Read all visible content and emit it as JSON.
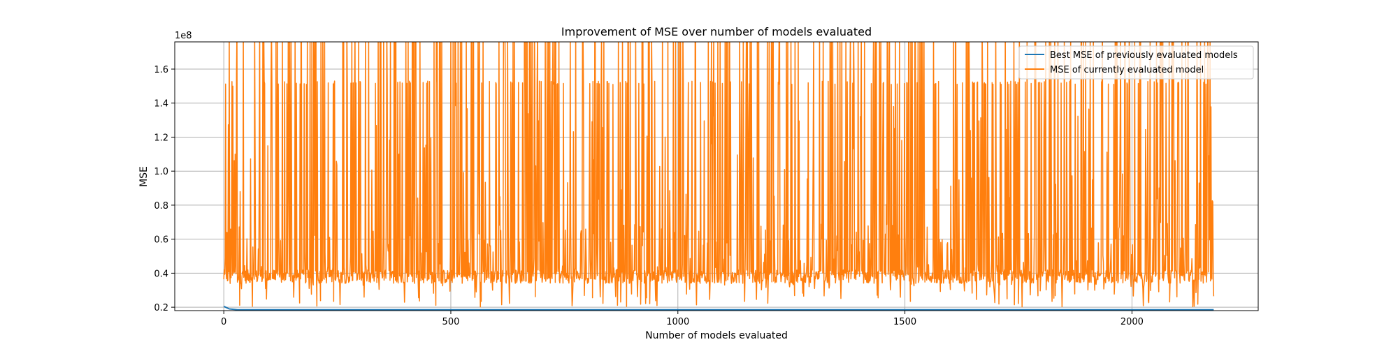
{
  "chart_data": {
    "type": "line",
    "title": "Improvement of MSE over number of models evaluated",
    "xlabel": "Number of models evaluated",
    "ylabel": "MSE",
    "y_offset_label": "1e8",
    "y_scale": 100000000,
    "xlim": [
      -108,
      2278
    ],
    "ylim": [
      0.18,
      1.76
    ],
    "x_ticks": [
      0,
      500,
      1000,
      1500,
      2000
    ],
    "y_ticks": [
      0.2,
      0.4,
      0.6,
      0.8,
      1.0,
      1.2,
      1.4,
      1.6
    ],
    "x_tick_labels": [
      "0",
      "500",
      "1000",
      "1500",
      "2000"
    ],
    "y_tick_labels": [
      "0.2",
      "0.4",
      "0.6",
      "0.8",
      "1.0",
      "1.2",
      "1.4",
      "1.6"
    ],
    "grid": true,
    "legend_position": "top-right",
    "series": [
      {
        "name": "Best MSE of previously evaluated models",
        "color": "#1f77b4",
        "x": [
          0,
          12,
          30,
          2180
        ],
        "values": [
          0.205,
          0.19,
          0.185,
          0.185
        ]
      },
      {
        "name": "MSE of currently evaluated model",
        "color": "#ff7f0e",
        "x_range": [
          0,
          2180
        ],
        "count": 2181,
        "baseline": 0.35,
        "baseline_band": [
          0.34,
          0.42
        ],
        "typical_range": [
          0.2,
          0.7
        ],
        "spike_cap": 1.53,
        "max_value": 1.76,
        "early_values": [
          {
            "x": 3,
            "value": 0.49
          },
          {
            "x": 7,
            "value": 0.64
          },
          {
            "x": 20,
            "value": 1.5
          },
          {
            "x": 25,
            "value": 1.1
          },
          {
            "x": 28,
            "value": 1.57
          }
        ]
      }
    ]
  }
}
